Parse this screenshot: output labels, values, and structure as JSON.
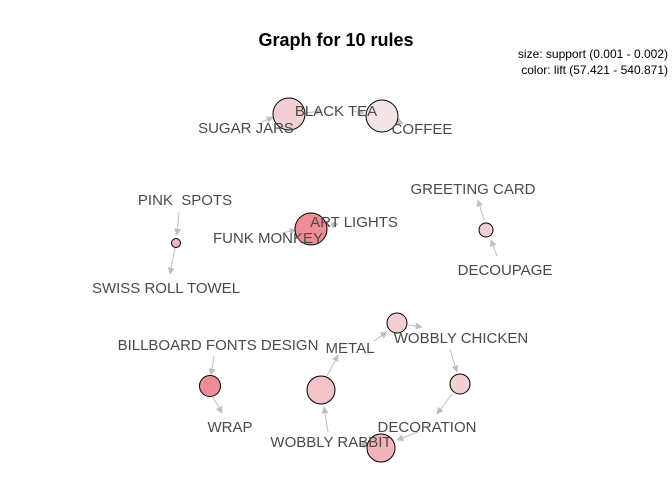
{
  "title": "Graph for 10 rules",
  "legend": {
    "size": "size: support (0.001 - 0.002)",
    "color": "color: lift (57.421 - 540.871)"
  },
  "items": {
    "sugar_jars": "SUGAR JARS",
    "black_tea": "BLACK TEA",
    "coffee": "COFFEE",
    "pink_spots": "PINK  SPOTS",
    "swiss_roll_towel": "SWISS ROLL TOWEL",
    "funk_monkey": "FUNK MONKEY",
    "art_lights": "ART LIGHTS",
    "greeting_card": "GREETING CARD",
    "decoupage": "DECOUPAGE",
    "billboard_fonts_design": "BILLBOARD FONTS DESIGN",
    "wrap": "WRAP",
    "metal": "METAL",
    "wobbly_chicken": "WOBBLY CHICKEN",
    "wobbly_rabbit": "WOBBLY RABBIT",
    "decoration": "DECORATION"
  },
  "colors": {
    "node_light": "#f3e4e6",
    "node_pale": "#f2cfd3",
    "node_mid": "#f0b4ba",
    "node_dark": "#ee8d96",
    "edge": "#bfbfbf"
  }
}
